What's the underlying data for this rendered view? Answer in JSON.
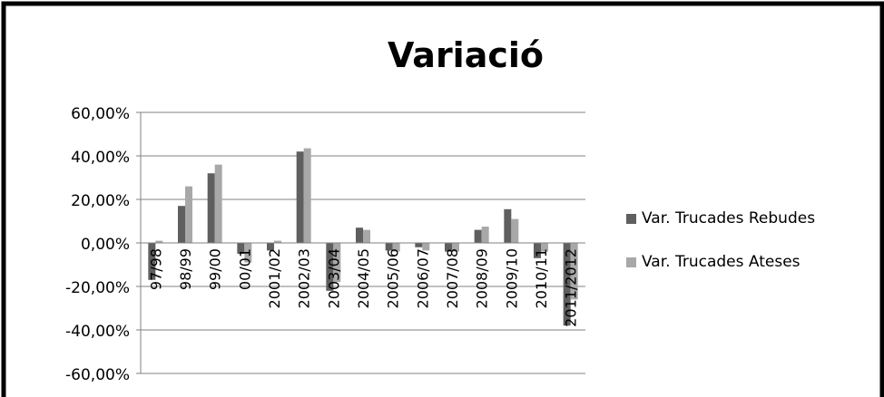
{
  "chart_data": {
    "type": "bar",
    "title": "Variació",
    "xlabel": "",
    "ylabel": "",
    "ylim": [
      -0.6,
      0.6
    ],
    "yticks": [
      0.6,
      0.4,
      0.2,
      0.0,
      -0.2,
      -0.4,
      -0.6
    ],
    "ytick_labels": [
      "60,00%",
      "40,00%",
      "20,00%",
      "0,00%",
      "-20,00%",
      "-40,00%",
      "-60,00%"
    ],
    "grid": true,
    "legend_position": "right",
    "categories": [
      "97/98",
      "98/99",
      "99/00",
      "00/01",
      "2001/02",
      "2002/03",
      "2003/04",
      "2004/05",
      "2005/06",
      "2006/07",
      "2007/08",
      "2008/09",
      "2009/10",
      "2010/11",
      "2011/2012"
    ],
    "series": [
      {
        "name": "Var. Trucades Rebudes",
        "color": "#5f5f5f",
        "values": [
          -0.17,
          0.17,
          0.32,
          -0.05,
          -0.035,
          0.42,
          -0.22,
          0.07,
          -0.035,
          -0.02,
          -0.04,
          0.06,
          0.155,
          -0.07,
          -0.38
        ]
      },
      {
        "name": "Var. Trucades Ateses",
        "color": "#a8a8a8",
        "values": [
          0.01,
          0.26,
          0.36,
          -0.09,
          0.01,
          0.435,
          -0.18,
          0.06,
          -0.04,
          -0.035,
          -0.04,
          0.075,
          0.11,
          -0.04,
          -0.26
        ]
      }
    ]
  }
}
